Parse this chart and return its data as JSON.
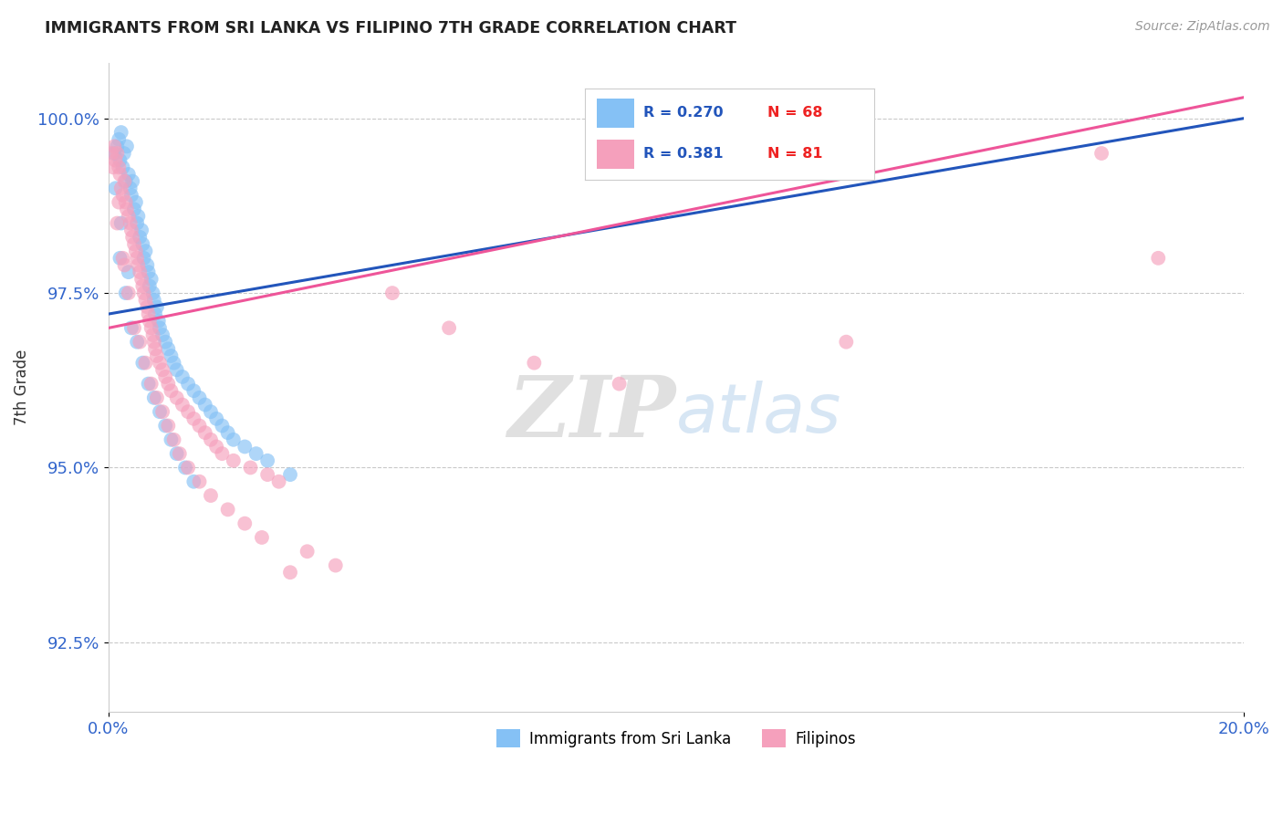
{
  "title": "IMMIGRANTS FROM SRI LANKA VS FILIPINO 7TH GRADE CORRELATION CHART",
  "source": "Source: ZipAtlas.com",
  "ylabel": "7th Grade",
  "xlim": [
    0.0,
    20.0
  ],
  "ylim": [
    91.5,
    100.8
  ],
  "xticks": [
    0.0,
    20.0
  ],
  "xticklabels": [
    "0.0%",
    "20.0%"
  ],
  "yticks": [
    92.5,
    95.0,
    97.5,
    100.0
  ],
  "yticklabels": [
    "92.5%",
    "95.0%",
    "97.5%",
    "100.0%"
  ],
  "legend_r1": "R = 0.270",
  "legend_n1": "N = 68",
  "legend_r2": "R = 0.381",
  "legend_n2": "N = 81",
  "color_blue": "#85C1F5",
  "color_pink": "#F5A0BC",
  "color_blue_line": "#2255BB",
  "color_pink_line": "#EE5599",
  "color_r_text": "#2255BB",
  "color_n_text": "#EE2222",
  "background_color": "#FFFFFF",
  "watermark_zip": "ZIP",
  "watermark_atlas": "atlas",
  "sri_lanka_x": [
    0.1,
    0.15,
    0.18,
    0.2,
    0.22,
    0.25,
    0.27,
    0.3,
    0.32,
    0.35,
    0.38,
    0.4,
    0.42,
    0.45,
    0.48,
    0.5,
    0.52,
    0.55,
    0.58,
    0.6,
    0.62,
    0.65,
    0.68,
    0.7,
    0.72,
    0.75,
    0.78,
    0.8,
    0.82,
    0.85,
    0.88,
    0.9,
    0.95,
    1.0,
    1.05,
    1.1,
    1.15,
    1.2,
    1.3,
    1.4,
    1.5,
    1.6,
    1.7,
    1.8,
    1.9,
    2.0,
    2.1,
    2.2,
    2.4,
    2.6,
    0.2,
    0.3,
    0.4,
    0.5,
    0.6,
    0.7,
    0.8,
    0.9,
    1.0,
    1.1,
    1.2,
    1.35,
    1.5,
    2.8,
    3.2,
    0.12,
    0.22,
    0.35
  ],
  "sri_lanka_y": [
    99.5,
    99.6,
    99.7,
    99.4,
    99.8,
    99.3,
    99.5,
    99.1,
    99.6,
    99.2,
    99.0,
    98.9,
    99.1,
    98.7,
    98.8,
    98.5,
    98.6,
    98.3,
    98.4,
    98.2,
    98.0,
    98.1,
    97.9,
    97.8,
    97.6,
    97.7,
    97.5,
    97.4,
    97.2,
    97.3,
    97.1,
    97.0,
    96.9,
    96.8,
    96.7,
    96.6,
    96.5,
    96.4,
    96.3,
    96.2,
    96.1,
    96.0,
    95.9,
    95.8,
    95.7,
    95.6,
    95.5,
    95.4,
    95.3,
    95.2,
    98.0,
    97.5,
    97.0,
    96.8,
    96.5,
    96.2,
    96.0,
    95.8,
    95.6,
    95.4,
    95.2,
    95.0,
    94.8,
    95.1,
    94.9,
    99.0,
    98.5,
    97.8
  ],
  "filipino_x": [
    0.05,
    0.1,
    0.12,
    0.15,
    0.18,
    0.2,
    0.22,
    0.25,
    0.28,
    0.3,
    0.32,
    0.35,
    0.38,
    0.4,
    0.42,
    0.45,
    0.48,
    0.5,
    0.52,
    0.55,
    0.58,
    0.6,
    0.62,
    0.65,
    0.68,
    0.7,
    0.72,
    0.75,
    0.78,
    0.8,
    0.82,
    0.85,
    0.9,
    0.95,
    1.0,
    1.05,
    1.1,
    1.2,
    1.3,
    1.4,
    1.5,
    1.6,
    1.7,
    1.8,
    1.9,
    2.0,
    2.2,
    2.5,
    2.8,
    3.0,
    0.15,
    0.25,
    0.35,
    0.45,
    0.55,
    0.65,
    0.75,
    0.85,
    0.95,
    1.05,
    1.15,
    1.25,
    1.4,
    1.6,
    1.8,
    2.1,
    2.4,
    2.7,
    3.5,
    4.0,
    5.0,
    6.0,
    7.5,
    9.0,
    13.0,
    17.5,
    18.5,
    3.2,
    0.08,
    0.18,
    0.28
  ],
  "filipino_y": [
    99.5,
    99.6,
    99.4,
    99.5,
    99.3,
    99.2,
    99.0,
    98.9,
    99.1,
    98.8,
    98.7,
    98.6,
    98.5,
    98.4,
    98.3,
    98.2,
    98.1,
    98.0,
    97.9,
    97.8,
    97.7,
    97.6,
    97.5,
    97.4,
    97.3,
    97.2,
    97.1,
    97.0,
    96.9,
    96.8,
    96.7,
    96.6,
    96.5,
    96.4,
    96.3,
    96.2,
    96.1,
    96.0,
    95.9,
    95.8,
    95.7,
    95.6,
    95.5,
    95.4,
    95.3,
    95.2,
    95.1,
    95.0,
    94.9,
    94.8,
    98.5,
    98.0,
    97.5,
    97.0,
    96.8,
    96.5,
    96.2,
    96.0,
    95.8,
    95.6,
    95.4,
    95.2,
    95.0,
    94.8,
    94.6,
    94.4,
    94.2,
    94.0,
    93.8,
    93.6,
    97.5,
    97.0,
    96.5,
    96.2,
    96.8,
    99.5,
    98.0,
    93.5,
    99.3,
    98.8,
    97.9
  ],
  "trend_sri_x0": 0.0,
  "trend_sri_x1": 20.0,
  "trend_fil_x0": 0.0,
  "trend_fil_x1": 20.0
}
